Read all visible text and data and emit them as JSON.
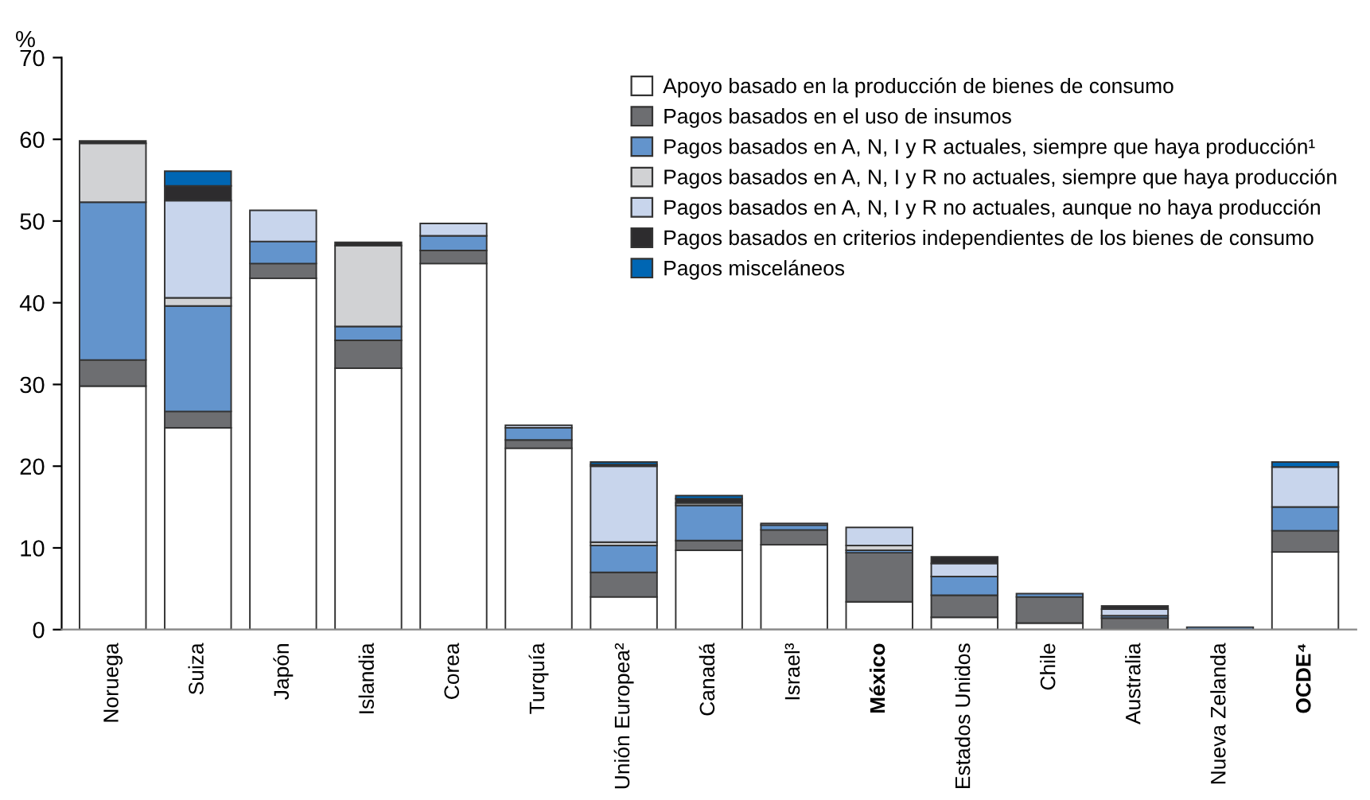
{
  "chart_data": {
    "type": "bar",
    "stacked": true,
    "ylabel": "%",
    "ylim": [
      0,
      70
    ],
    "yticks": [
      0,
      10,
      20,
      30,
      40,
      50,
      60,
      70
    ],
    "grid": false,
    "legend": "top right",
    "categories": [
      "Noruega",
      "Suiza",
      "Japón",
      "Islandia",
      "Corea",
      "Turquía",
      "Unión Europea²",
      "Canadá",
      "Israel³",
      "México",
      "Estados Unidos",
      "Chile",
      "Australia",
      "Nueva Zelanda",
      "OCDE⁴"
    ],
    "series": [
      {
        "name": "Apoyo basado en la producción de bienes de consumo",
        "color": "#ffffff",
        "values": [
          29.8,
          24.7,
          43.0,
          32.0,
          44.8,
          22.2,
          4.0,
          9.7,
          10.4,
          3.4,
          1.5,
          0.8,
          null,
          null,
          9.5
        ]
      },
      {
        "name": "Pagos basados en el uso de insumos",
        "color": "#6d6e71",
        "values": [
          3.2,
          2.0,
          1.8,
          3.4,
          1.6,
          1.0,
          3.0,
          1.2,
          1.8,
          6.0,
          2.7,
          3.2,
          1.4,
          null,
          2.6
        ]
      },
      {
        "name": "Pagos basados en A, N, I y R actuales, siempre que haya producción¹",
        "color": "#6394cc",
        "values": [
          19.3,
          12.9,
          2.7,
          1.7,
          1.8,
          1.5,
          3.3,
          4.3,
          0.6,
          0.3,
          2.3,
          0.4,
          0.3,
          0.3,
          2.9
        ]
      },
      {
        "name": "Pagos basados en A, N, I y R no actuales, siempre que haya producción",
        "color": "#d1d2d4",
        "values": [
          7.2,
          1.0,
          0,
          9.9,
          0,
          0,
          0.4,
          0.3,
          0,
          0.6,
          0,
          0,
          0,
          0,
          null
        ]
      },
      {
        "name": "Pagos basados en A, N, I y R no actuales, aunque no haya producción",
        "color": "#c8d5ec",
        "values": [
          0,
          11.9,
          3.8,
          0,
          1.5,
          0.3,
          9.3,
          0,
          0.2,
          2.2,
          1.6,
          0,
          0.8,
          0,
          4.9
        ]
      },
      {
        "name": "Pagos basados en criterios independientes de los bienes de consumo",
        "color": "#2d2c2e",
        "values": [
          0.3,
          1.8,
          0,
          0.4,
          0,
          0,
          0.2,
          0.5,
          0,
          0,
          0.8,
          0,
          0.4,
          0,
          0
        ]
      },
      {
        "name": "Pagos misceláneos",
        "color": "#0066b3",
        "values": [
          0,
          1.8,
          0,
          0,
          0,
          0,
          0.3,
          0.4,
          0,
          0,
          0,
          0,
          0,
          0,
          0.6
        ]
      }
    ]
  }
}
